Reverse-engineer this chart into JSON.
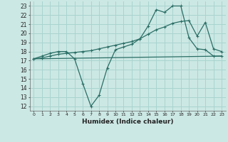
{
  "xlabel": "Humidex (Indice chaleur)",
  "bg_color": "#cce8e4",
  "grid_color": "#a8d4cf",
  "line_color": "#2a6e65",
  "xlim": [
    -0.5,
    23.5
  ],
  "ylim": [
    11.5,
    23.5
  ],
  "xticks": [
    0,
    1,
    2,
    3,
    4,
    5,
    6,
    7,
    8,
    9,
    10,
    11,
    12,
    13,
    14,
    15,
    16,
    17,
    18,
    19,
    20,
    21,
    22,
    23
  ],
  "yticks": [
    12,
    13,
    14,
    15,
    16,
    17,
    18,
    19,
    20,
    21,
    22,
    23
  ],
  "curve1_x": [
    0,
    1,
    2,
    3,
    4,
    5,
    6,
    7,
    8,
    9,
    10,
    11,
    12,
    13,
    14,
    15,
    16,
    17,
    18,
    19,
    20,
    21,
    22,
    23
  ],
  "curve1_y": [
    17.2,
    17.5,
    17.8,
    18.0,
    18.0,
    17.2,
    14.5,
    12.0,
    13.2,
    16.2,
    18.2,
    18.5,
    18.8,
    19.4,
    20.8,
    22.6,
    22.3,
    23.0,
    23.0,
    19.5,
    18.3,
    18.2,
    17.5,
    17.5
  ],
  "curve2_x": [
    0,
    1,
    2,
    3,
    4,
    5,
    6,
    7,
    8,
    9,
    10,
    11,
    12,
    13,
    14,
    15,
    16,
    17,
    18,
    19,
    20,
    21,
    22,
    23
  ],
  "curve2_y": [
    17.2,
    17.3,
    17.5,
    17.7,
    17.8,
    17.9,
    18.0,
    18.1,
    18.3,
    18.5,
    18.7,
    18.9,
    19.1,
    19.4,
    19.9,
    20.4,
    20.7,
    21.1,
    21.3,
    21.4,
    19.7,
    21.2,
    18.3,
    18.0
  ],
  "curve3_x": [
    0,
    23
  ],
  "curve3_y": [
    17.2,
    17.5
  ]
}
